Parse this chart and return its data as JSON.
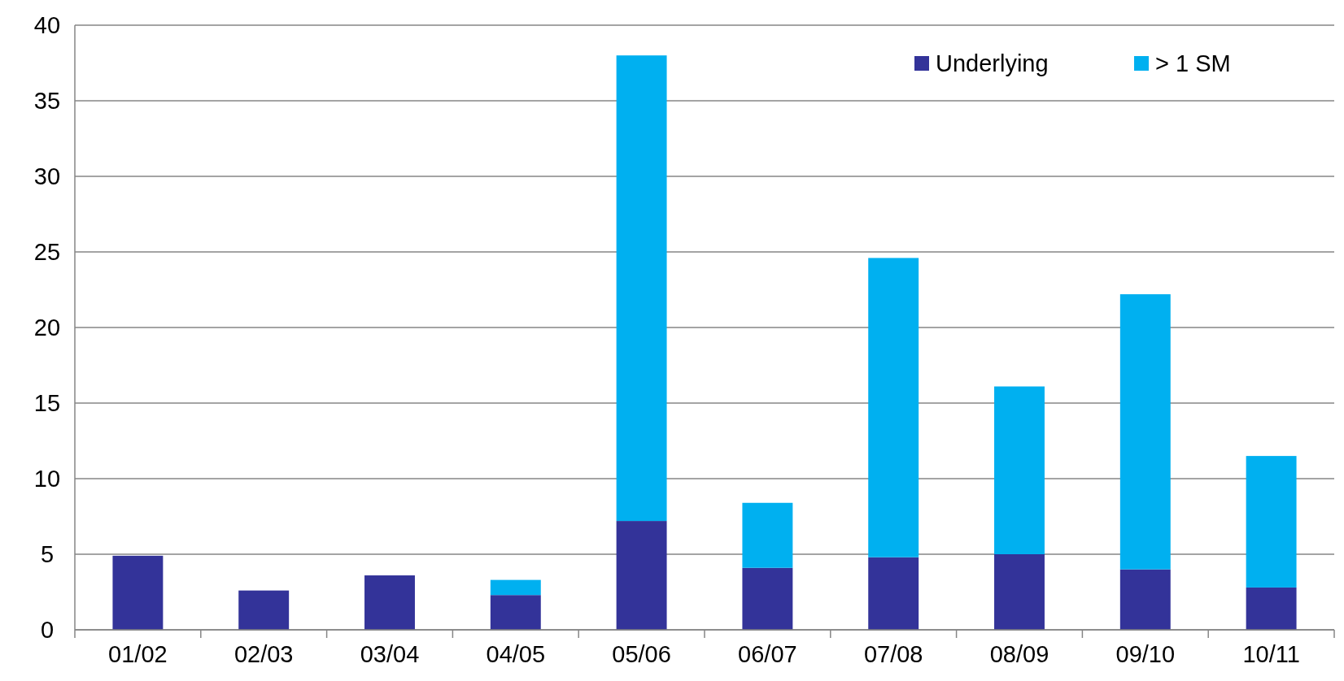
{
  "chart_data": {
    "type": "bar",
    "stacked": true,
    "categories": [
      "01/02",
      "02/03",
      "03/04",
      "04/05",
      "05/06",
      "06/07",
      "07/08",
      "08/09",
      "09/10",
      "10/11"
    ],
    "series": [
      {
        "name": "Underlying",
        "color": "#333399",
        "values": [
          4.9,
          2.6,
          3.6,
          2.3,
          7.2,
          4.1,
          4.8,
          5.0,
          4.0,
          2.8
        ]
      },
      {
        "name": "> 1 SM",
        "color": "#00b0f0",
        "values": [
          null,
          null,
          null,
          1.0,
          30.8,
          4.3,
          19.8,
          11.1,
          18.2,
          8.7
        ]
      }
    ],
    "ylim": [
      0,
      40
    ],
    "yticks": [
      0,
      5,
      10,
      15,
      20,
      25,
      30,
      35,
      40
    ],
    "grid": "y",
    "legend": "top right"
  }
}
